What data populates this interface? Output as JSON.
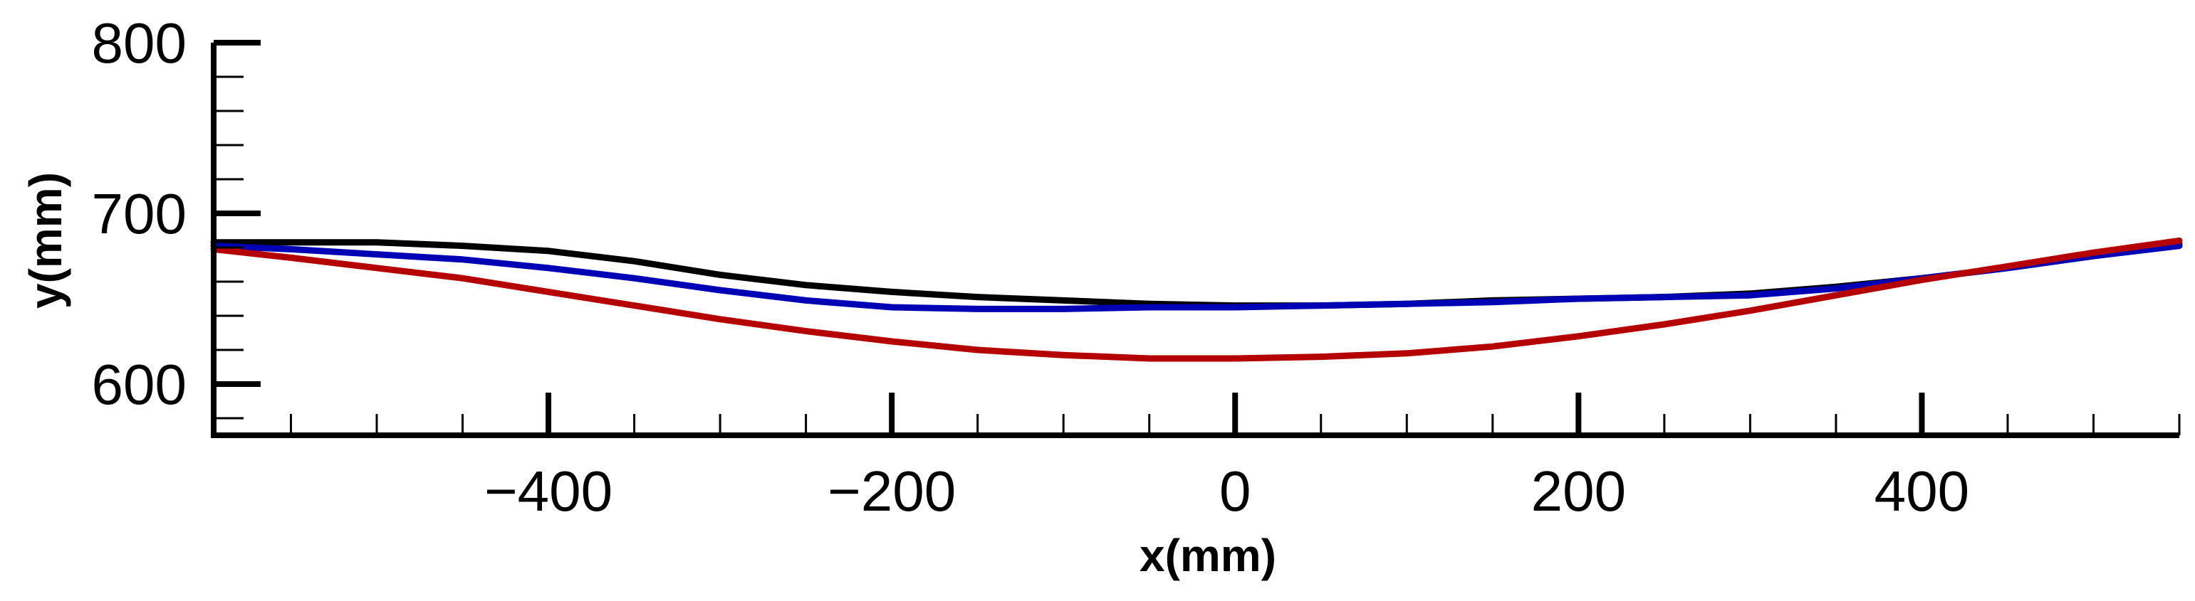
{
  "chart_data": {
    "type": "line",
    "title": "",
    "xlabel": "x(mm)",
    "ylabel": "y(mm)",
    "xlim": [
      -595,
      550
    ],
    "ylim": [
      570,
      800
    ],
    "x_ticks": [
      -400,
      -200,
      0,
      200,
      400
    ],
    "x_tick_labels": [
      "−400",
      "−200",
      "0",
      "200",
      "400"
    ],
    "x_minor_step": 50,
    "y_ticks": [
      600,
      700,
      800
    ],
    "y_tick_labels": [
      "600",
      "700",
      "800"
    ],
    "y_minor_step": 20,
    "grid": false,
    "legend": "none",
    "series": [
      {
        "color": "#000000",
        "x": [
          -595,
          -550,
          -500,
          -450,
          -400,
          -350,
          -300,
          -250,
          -200,
          -150,
          -100,
          -50,
          0,
          50,
          100,
          150,
          200,
          250,
          300,
          350,
          400,
          450,
          500,
          550
        ],
        "y": [
          683,
          683,
          683,
          681,
          678,
          672,
          664,
          658,
          654,
          651,
          649,
          647,
          646,
          646,
          647,
          649,
          650,
          651,
          653,
          657,
          662,
          668,
          675,
          682
        ]
      },
      {
        "color": "#0000b4",
        "x": [
          -595,
          -550,
          -500,
          -450,
          -400,
          -350,
          -300,
          -250,
          -200,
          -150,
          -100,
          -50,
          0,
          50,
          100,
          150,
          200,
          250,
          300,
          350,
          400,
          450,
          500,
          550
        ],
        "y": [
          681,
          679,
          676,
          673,
          668,
          662,
          655,
          649,
          645,
          644,
          644,
          645,
          645,
          646,
          647,
          648,
          650,
          651,
          652,
          656,
          662,
          668,
          675,
          681
        ]
      },
      {
        "color": "#b40000",
        "x": [
          -595,
          -550,
          -500,
          -450,
          -400,
          -350,
          -300,
          -250,
          -200,
          -150,
          -100,
          -50,
          0,
          50,
          100,
          150,
          200,
          250,
          300,
          350,
          400,
          450,
          500,
          550
        ],
        "y": [
          679,
          674,
          668,
          662,
          654,
          646,
          638,
          631,
          625,
          620,
          617,
          615,
          615,
          616,
          618,
          622,
          628,
          635,
          643,
          652,
          661,
          669,
          677,
          684
        ]
      }
    ]
  }
}
